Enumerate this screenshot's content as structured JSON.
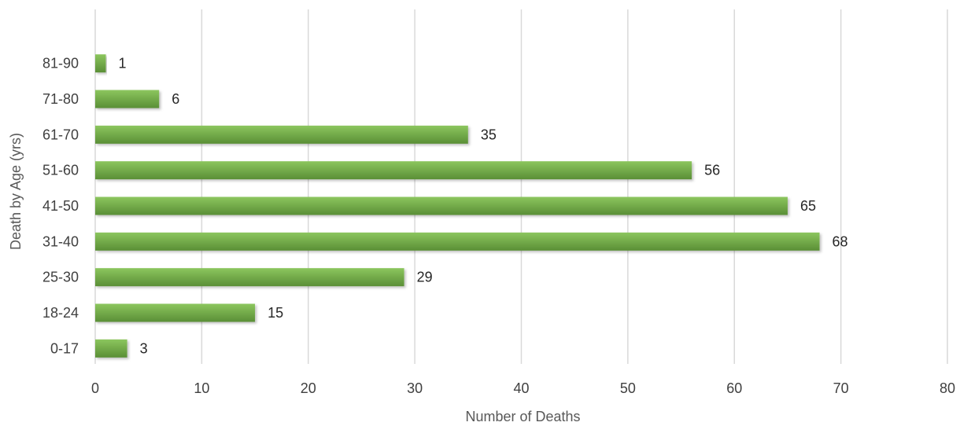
{
  "chart_data": {
    "type": "bar",
    "orientation": "horizontal",
    "categories": [
      "0-17",
      "18-24",
      "25-30",
      "31-40",
      "41-50",
      "51-60",
      "61-70",
      "71-80",
      "81-90"
    ],
    "values": [
      3,
      15,
      29,
      68,
      65,
      56,
      35,
      6,
      1
    ],
    "title": "",
    "xlabel": "Number of Deaths",
    "ylabel": "Death by Age (yrs)",
    "xlim": [
      0,
      80
    ],
    "x_ticks": [
      0,
      10,
      20,
      30,
      40,
      50,
      60,
      70,
      80
    ],
    "grid": "vertical",
    "legend": "none",
    "data_labels": true,
    "colors": {
      "bar": "#70ad47",
      "bar_highlight": "#8cc65e",
      "bar_shadow": "#5a8f36",
      "grid": "#d9d9d9"
    }
  }
}
